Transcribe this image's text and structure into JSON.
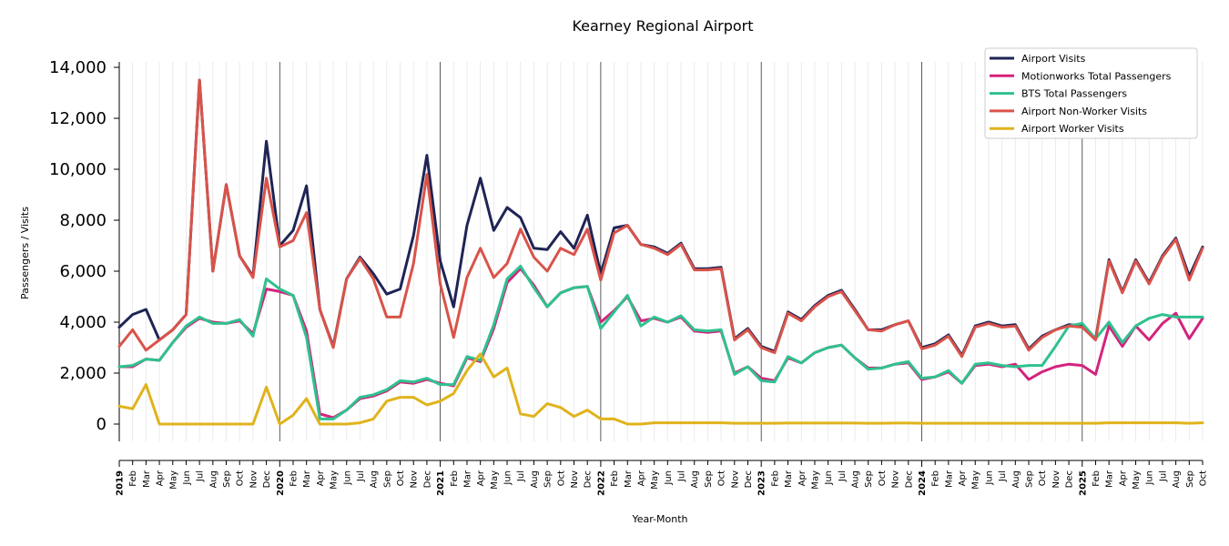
{
  "chart_data": {
    "type": "line",
    "title": "Kearney Regional Airport",
    "xlabel": "Year-Month",
    "ylabel": "Passengers / Visits",
    "ylim": [
      -700,
      14200
    ],
    "yticks": [
      0,
      2000,
      4000,
      6000,
      8000,
      10000,
      12000,
      14000
    ],
    "ytick_labels": [
      "0",
      "2,000",
      "4,000",
      "6,000",
      "8,000",
      "10,000",
      "12,000",
      "14,000"
    ],
    "grid": "vertical monthly gridlines; darker lines at year starts",
    "legend_position": "top-right",
    "x": [
      "2019",
      "Feb",
      "Mar",
      "Apr",
      "May",
      "Jun",
      "Jul",
      "Aug",
      "Sep",
      "Oct",
      "Nov",
      "Dec",
      "2020",
      "Feb",
      "Mar",
      "Apr",
      "May",
      "Jun",
      "Jul",
      "Aug",
      "Sep",
      "Oct",
      "Nov",
      "Dec",
      "2021",
      "Feb",
      "Mar",
      "Apr",
      "May",
      "Jun",
      "Jul",
      "Aug",
      "Sep",
      "Oct",
      "Nov",
      "Dec",
      "2022",
      "Feb",
      "Mar",
      "Apr",
      "May",
      "Jun",
      "Jul",
      "Aug",
      "Sep",
      "Oct",
      "Nov",
      "Dec",
      "2023",
      "Feb",
      "Mar",
      "Apr",
      "May",
      "Jun",
      "Jul",
      "Aug",
      "Sep",
      "Oct",
      "Nov",
      "Dec",
      "2024",
      "Feb",
      "Mar",
      "Apr",
      "May",
      "Jun",
      "Jul",
      "Aug",
      "Sep",
      "Oct",
      "Nov",
      "Dec",
      "2025",
      "Feb",
      "Mar",
      "Apr",
      "May",
      "Jun",
      "Jul",
      "Aug",
      "Sep",
      "Oct"
    ],
    "year_start_indices": [
      0,
      12,
      24,
      36,
      48,
      60,
      72
    ],
    "series": [
      {
        "name": "Airport Visits",
        "color": "#1f2455",
        "values": [
          3800,
          4300,
          4500,
          3300,
          3700,
          4300,
          13500,
          6000,
          9400,
          6600,
          5800,
          11100,
          7000,
          7600,
          9350,
          4500,
          3050,
          5700,
          6550,
          5900,
          5100,
          5300,
          7400,
          10550,
          6400,
          4600,
          7800,
          9650,
          7600,
          8500,
          8100,
          6900,
          6850,
          7550,
          6900,
          8200,
          5900,
          7700,
          7800,
          7050,
          6950,
          6700,
          7100,
          6100,
          6100,
          6150,
          3350,
          3750,
          3050,
          2850,
          4400,
          4100,
          4650,
          5050,
          5250,
          4500,
          3700,
          3700,
          3900,
          4050,
          3000,
          3150,
          3500,
          2700,
          3850,
          4000,
          3850,
          3900,
          2950,
          3450,
          3700,
          3900,
          3850,
          3350,
          6450,
          5200,
          6450,
          5550,
          6600,
          7300,
          5800,
          6950
        ]
      },
      {
        "name": "Motionworks Total Passengers",
        "color": "#d4237d",
        "values": [
          2250,
          2250,
          2550,
          2500,
          3200,
          3800,
          4150,
          4000,
          3950,
          4050,
          3550,
          5300,
          5200,
          5050,
          3650,
          400,
          250,
          550,
          1000,
          1100,
          1300,
          1650,
          1600,
          1750,
          1600,
          1500,
          2600,
          2450,
          3750,
          5550,
          6100,
          5450,
          4600,
          5150,
          5350,
          5400,
          4000,
          4450,
          5000,
          4050,
          4150,
          4000,
          4200,
          3650,
          3600,
          3650,
          2000,
          2250,
          1800,
          1700,
          2600,
          2400,
          2800,
          3000,
          3100,
          2600,
          2200,
          2200,
          2350,
          2400,
          1750,
          1850,
          2050,
          1600,
          2300,
          2350,
          2250,
          2350,
          1750,
          2050,
          2250,
          2350,
          2300,
          1950,
          3850,
          3050,
          3850,
          3300,
          3950,
          4350,
          3350,
          4150
        ]
      },
      {
        "name": "BTS Total Passengers",
        "color": "#2fc18f",
        "values": [
          2250,
          2300,
          2550,
          2500,
          3200,
          3850,
          4200,
          3950,
          3950,
          4100,
          3450,
          5700,
          5300,
          5050,
          3400,
          200,
          200,
          550,
          1050,
          1150,
          1350,
          1700,
          1650,
          1800,
          1550,
          1550,
          2650,
          2500,
          3900,
          5700,
          6200,
          5350,
          4600,
          5150,
          5350,
          5400,
          3750,
          4400,
          5050,
          3850,
          4200,
          4000,
          4250,
          3700,
          3650,
          3700,
          1950,
          2250,
          1700,
          1650,
          2650,
          2400,
          2800,
          3000,
          3100,
          2600,
          2150,
          2200,
          2350,
          2450,
          1800,
          1850,
          2100,
          1600,
          2350,
          2400,
          2300,
          2250,
          2300,
          2300,
          3050,
          3850,
          3950,
          3350,
          4000,
          3200,
          3850,
          4150,
          4300,
          4200,
          4200,
          4200
        ]
      },
      {
        "name": "Airport Non-Worker Visits",
        "color": "#d9534a",
        "values": [
          3050,
          3700,
          2900,
          3300,
          3700,
          4300,
          13500,
          6000,
          9400,
          6600,
          5750,
          9650,
          6950,
          7200,
          8300,
          4500,
          3000,
          5700,
          6500,
          5700,
          4200,
          4200,
          6300,
          9800,
          5500,
          3400,
          5750,
          6900,
          5750,
          6300,
          7650,
          6550,
          6000,
          6900,
          6650,
          7650,
          5650,
          7500,
          7800,
          7050,
          6900,
          6650,
          7050,
          6050,
          6050,
          6100,
          3300,
          3700,
          3000,
          2800,
          4350,
          4050,
          4600,
          5000,
          5200,
          4450,
          3700,
          3650,
          3900,
          4050,
          2950,
          3100,
          3450,
          2650,
          3800,
          3950,
          3800,
          3850,
          2900,
          3400,
          3700,
          3850,
          3800,
          3300,
          6400,
          5150,
          6400,
          5500,
          6550,
          7250,
          5650,
          6900
        ]
      },
      {
        "name": "Airport Worker Visits",
        "color": "#e0b31c",
        "values": [
          700,
          600,
          1550,
          0,
          0,
          0,
          0,
          0,
          0,
          0,
          0,
          1450,
          0,
          350,
          1000,
          0,
          0,
          0,
          50,
          200,
          900,
          1050,
          1050,
          750,
          900,
          1200,
          2100,
          2750,
          1850,
          2200,
          400,
          300,
          800,
          650,
          300,
          550,
          200,
          200,
          0,
          0,
          50,
          50,
          50,
          50,
          50,
          50,
          30,
          30,
          30,
          30,
          40,
          40,
          40,
          40,
          40,
          40,
          30,
          30,
          40,
          40,
          30,
          30,
          30,
          30,
          30,
          30,
          30,
          30,
          30,
          30,
          30,
          30,
          30,
          30,
          50,
          50,
          50,
          50,
          50,
          50,
          30,
          50
        ]
      }
    ]
  }
}
